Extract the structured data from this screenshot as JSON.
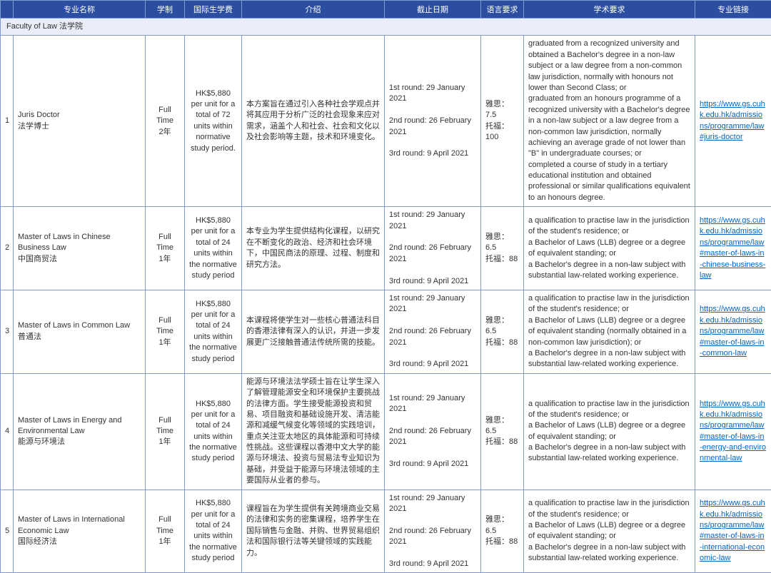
{
  "headers": {
    "name": "专业名称",
    "mode": "学制",
    "fee": "国际生学费",
    "intro": "介绍",
    "deadline": "截止日期",
    "lang": "语言要求",
    "acad": "学术要求",
    "link": "专业链接"
  },
  "faculty": "Faculty of Law 法学院",
  "rows": [
    {
      "idx": "1",
      "name": "Juris Doctor\n法学博士",
      "mode": "Full Time\n2年",
      "fee": "HK$5,880 per unit for a total of 72 units within normative study period.",
      "intro": "本方案旨在通过引入各种社会学观点并将其应用于分析广泛的社会现象来应对需求，涵盖个人和社会、社会和文化以及社会影响等主题，技术和环境变化。",
      "deadline": "1st round: 29 January 2021\n\n2nd round: 26 February 2021\n\n3rd round: 9 April 2021",
      "lang": "雅思：7.5\n托福：100",
      "acad": "graduated from a recognized university and obtained a Bachelor's degree in a non-law subject or a law degree from a non-common law jurisdiction, normally with honours not lower than Second Class; or\ngraduated from an honours programme of a recognized university with a Bachelor's degree in a non-law subject or a law degree from a non-common law jurisdiction, normally achieving an average grade of not lower than \"B\" in undergraduate courses; or\ncompleted a course of study in a tertiary educational institution and obtained professional or similar qualifications equivalent to an honours degree.",
      "link": "https://www.gs.cuhk.edu.hk/admissions/programme/law#juris-doctor"
    },
    {
      "idx": "2",
      "name": "Master of Laws in Chinese Business Law\n中国商贸法",
      "mode": "Full Time\n1年",
      "fee": "HK$5,880 per unit for a total of 24 units within the normative study period",
      "intro": "本专业为学生提供结构化课程，以研究在不断变化的政治、经济和社会环境下，中国民商法的原理、过程、制度和研究方法。",
      "deadline": "1st round: 29 January 2021\n\n2nd round: 26 February 2021\n\n3rd round: 9 April 2021",
      "lang": "雅思：6.5\n托福：88",
      "acad": "a qualification to practise law in the jurisdiction of the student's residence; or\na Bachelor of Laws (LLB) degree or a degree of equivalent standing; or\na Bachelor's degree in a non-law subject with substantial law-related working experience.",
      "link": "https://www.gs.cuhk.edu.hk/admissions/programme/law#master-of-laws-in-chinese-business-law"
    },
    {
      "idx": "3",
      "name": "Master of Laws in Common Law\n普通法",
      "mode": "Full Time\n1年",
      "fee": "HK$5,880 per unit for a total of 24 units within the normative study period",
      "intro": "本课程将使学生对一些核心普通法科目的香港法律有深入的认识，并进一步发展更广泛接触普通法传统所需的技能。",
      "deadline": "1st round: 29 January 2021\n\n2nd round: 26 February 2021\n\n3rd round: 9 April 2021",
      "lang": "雅思：6.5\n托福：88",
      "acad": "a qualification to practise law in the jurisdiction of the student's residence; or\na Bachelor of Laws (LLB) degree or a degree of equivalent standing (normally obtained in a non-common law jurisdiction); or\na Bachelor's degree in a non-law subject with substantial law-related working experience.",
      "link": "https://www.gs.cuhk.edu.hk/admissions/programme/law#master-of-laws-in-common-law"
    },
    {
      "idx": "4",
      "name": "Master of Laws in Energy and Environmental Law\n能源与环境法",
      "mode": "Full Time\n1年",
      "fee": "HK$5,880 per unit for a total of 24 units within the normative study period",
      "intro": "能源与环境法法学硕士旨在让学生深入了解管理能源安全和环境保护主要挑战的法律方面。学生接受能源投资和贸易、项目融资和基础设施开发、清洁能源和减缓气候变化等领域的实践培训，重点关注亚太地区的具体能源和可持续性挑战。这些课程以香港中文大学的能源与环境法、投资与贸易法专业知识为基础，并受益于能源与环境法领域的主要国际从业者的参与。",
      "deadline": "1st round: 29 January 2021\n\n2nd round: 26 February 2021\n\n3rd round: 9 April 2021",
      "lang": "雅思：6.5\n托福：88",
      "acad": "a qualification to practise law in the jurisdiction of the student's residence; or\na Bachelor of Laws (LLB) degree or a degree of equivalent standing; or\na Bachelor's degree in a non-law subject with substantial law-related working experience.",
      "link": "https://www.gs.cuhk.edu.hk/admissions/programme/law#master-of-laws-in-energy-and-environmental-law"
    },
    {
      "idx": "5",
      "name": "Master of Laws in International Economic Law\n国际经济法",
      "mode": "Full Time\n1年",
      "fee": "HK$5,880 per unit for a total of 24 units within the normative study period",
      "intro": "课程旨在为学生提供有关跨境商业交易的法律和实务的密集课程，培养学生在国际销售与金融、并购、世界贸易组织法和国际银行法等关键领域的实践能力。",
      "deadline": "1st round: 29 January 2021\n\n2nd round: 26 February 2021\n\n3rd round: 9 April 2021",
      "lang": "雅思：6.5\n托福：88",
      "acad": "a qualification to practise law in the jurisdiction of the student's residence; or\na Bachelor of Laws (LLB) degree or a degree of equivalent standing; or\na Bachelor's degree in a non-law subject with substantial law-related working experience.",
      "link": "https://www.gs.cuhk.edu.hk/admissions/programme/law#master-of-laws-in-international-economic-law"
    }
  ]
}
